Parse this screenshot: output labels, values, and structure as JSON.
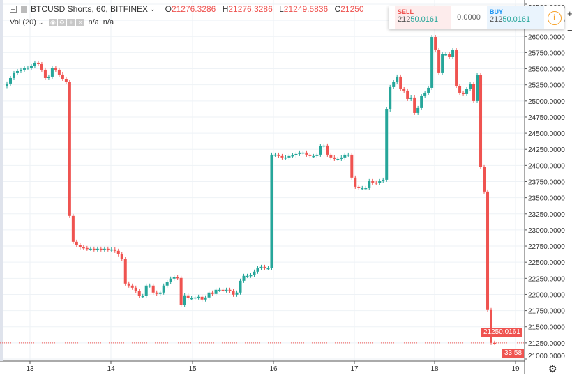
{
  "header": {
    "symbol": "BTCUSD Shorts, 60, BITFINEX",
    "open_label": "O",
    "open": "21276.3286",
    "high_label": "H",
    "high": "21276.3286",
    "low_label": "L",
    "low": "21249.5836",
    "close_label": "C",
    "close": "21250"
  },
  "volume": {
    "label": "Vol (20)",
    "v1": "n/a",
    "v2": "n/a"
  },
  "trade_panel": {
    "sell_label": "SELL",
    "sell_price_a": "212",
    "sell_price_b": "50.0161",
    "spread": "0.0000",
    "buy_label": "BUY",
    "buy_price_a": "212",
    "buy_price_b": "50.0161",
    "info_icon": "i"
  },
  "zoom": {
    "plus": "+",
    "minus": "−"
  },
  "last_price": "21250.0161",
  "countdown": "33:58",
  "colors": {
    "up": "#26a69a",
    "down": "#ef5350",
    "grid": "#eef2f6"
  },
  "chart_data": {
    "type": "candlestick",
    "interval": "60",
    "yaxis_ticks": [
      "26500.0000",
      "26250.0000",
      "26000.0000",
      "25750.0000",
      "25500.0000",
      "25250.0000",
      "25000.0000",
      "24750.0000",
      "24500.0000",
      "24250.0000",
      "24000.0000",
      "23750.0000",
      "23500.0000",
      "23250.0000",
      "23000.0000",
      "22750.0000",
      "22500.0000",
      "22250.0000",
      "22000.0000",
      "21750.0000",
      "21500.0000",
      "21250.0000",
      "21000.0000"
    ],
    "ylim": [
      21000,
      26500
    ],
    "xaxis_ticks": [
      "13",
      "14",
      "15",
      "16",
      "17",
      "18",
      "19"
    ],
    "start_close": 25230,
    "close": [
      25269,
      25355,
      25431,
      25463,
      25485,
      25506,
      25517,
      25539,
      25593,
      25571,
      25485,
      25355,
      25377,
      25506,
      25485,
      25409,
      25344,
      25290,
      23217,
      22817,
      22763,
      22731,
      22720,
      22709,
      22709,
      22698,
      22709,
      22698,
      22709,
      22698,
      22698,
      22677,
      22623,
      22547,
      22169,
      22137,
      22104,
      22050,
      21975,
      21975,
      22137,
      22137,
      22029,
      22007,
      22029,
      22137,
      22191,
      22245,
      22266,
      22256,
      21834,
      21986,
      21942,
      21942,
      21953,
      21964,
      21921,
      21953,
      22029,
      22007,
      22072,
      22072,
      22061,
      22072,
      22050,
      21996,
      22029,
      22212,
      22288,
      22288,
      22299,
      22353,
      22407,
      22428,
      22407,
      22407,
      24167,
      24167,
      24146,
      24124,
      24124,
      24146,
      24156,
      24178,
      24200,
      24200,
      24167,
      24146,
      24146,
      24167,
      24297,
      24308,
      24167,
      24124,
      24102,
      24102,
      24124,
      24167,
      24167,
      23811,
      23670,
      23649,
      23649,
      23649,
      23757,
      23735,
      23724,
      23757,
      23778,
      24869,
      25215,
      25290,
      25377,
      25182,
      25161,
      25031,
      25053,
      24815,
      24891,
      25074,
      25128,
      25204,
      25992,
      25787,
      25431,
      25722,
      25722,
      25679,
      25787,
      25236,
      25128,
      25107,
      25182,
      25258,
      24999,
      25398,
      23973,
      23595,
      21759,
      21251,
      21250.0161
    ]
  }
}
